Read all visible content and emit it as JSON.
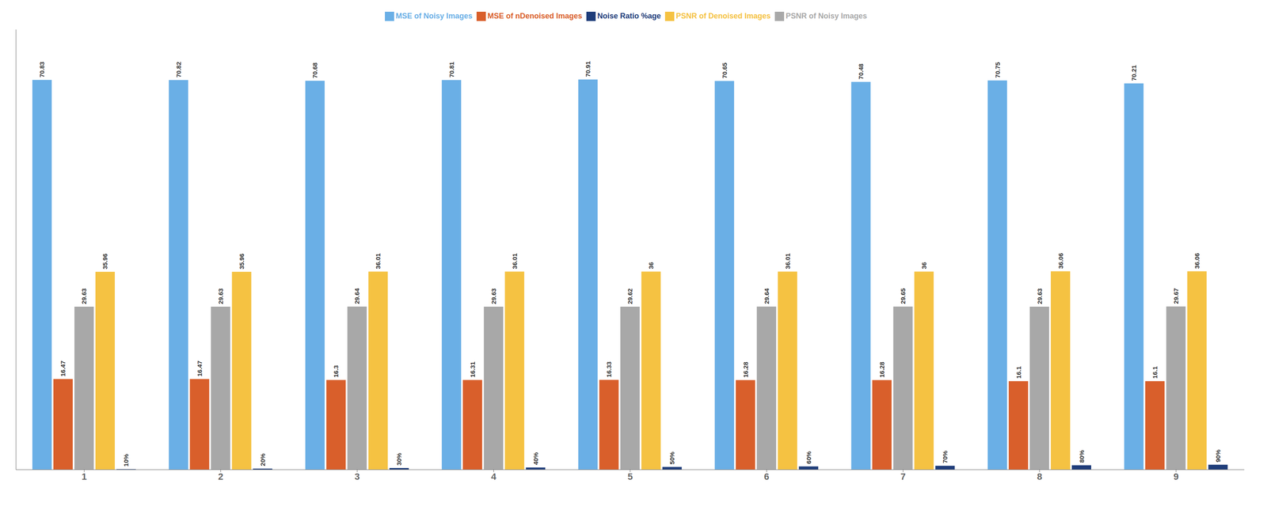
{
  "chart_data": {
    "type": "bar",
    "categories": [
      "1",
      "2",
      "3",
      "4",
      "5",
      "6",
      "7",
      "8",
      "9"
    ],
    "series": [
      {
        "name": "MSE of Noisy Images",
        "color": "#6aafe6",
        "values": [
          70.83,
          70.82,
          70.68,
          70.81,
          70.91,
          70.65,
          70.48,
          70.75,
          70.21
        ]
      },
      {
        "name": "MSE of nDenoised Images",
        "color": "#d95f2b",
        "values": [
          16.47,
          16.47,
          16.3,
          16.31,
          16.33,
          16.28,
          16.28,
          16.1,
          16.1
        ]
      },
      {
        "name": "PSNR of Noisy Images",
        "color": "#a8a8a8",
        "values": [
          29.63,
          29.63,
          29.64,
          29.63,
          29.62,
          29.64,
          29.65,
          29.63,
          29.67
        ]
      },
      {
        "name": "PSNR of Denoised Images",
        "color": "#f5c242",
        "values": [
          35.96,
          35.96,
          36.01,
          36.01,
          36,
          36.01,
          36,
          36.06,
          36.06
        ]
      },
      {
        "name": "Noise Ratio %age",
        "color": "#1f3d7a",
        "values": [
          0.1,
          0.2,
          0.3,
          0.4,
          0.5,
          0.6,
          0.7,
          0.8,
          0.9
        ],
        "value_labels": [
          "10%",
          "20%",
          "30%",
          "40%",
          "50%",
          "60%",
          "70%",
          "80%",
          "90%"
        ]
      }
    ],
    "ylim": [
      0,
      80
    ],
    "grid": false,
    "legend": "top",
    "data_labels": true,
    "tick_labels": "x"
  }
}
